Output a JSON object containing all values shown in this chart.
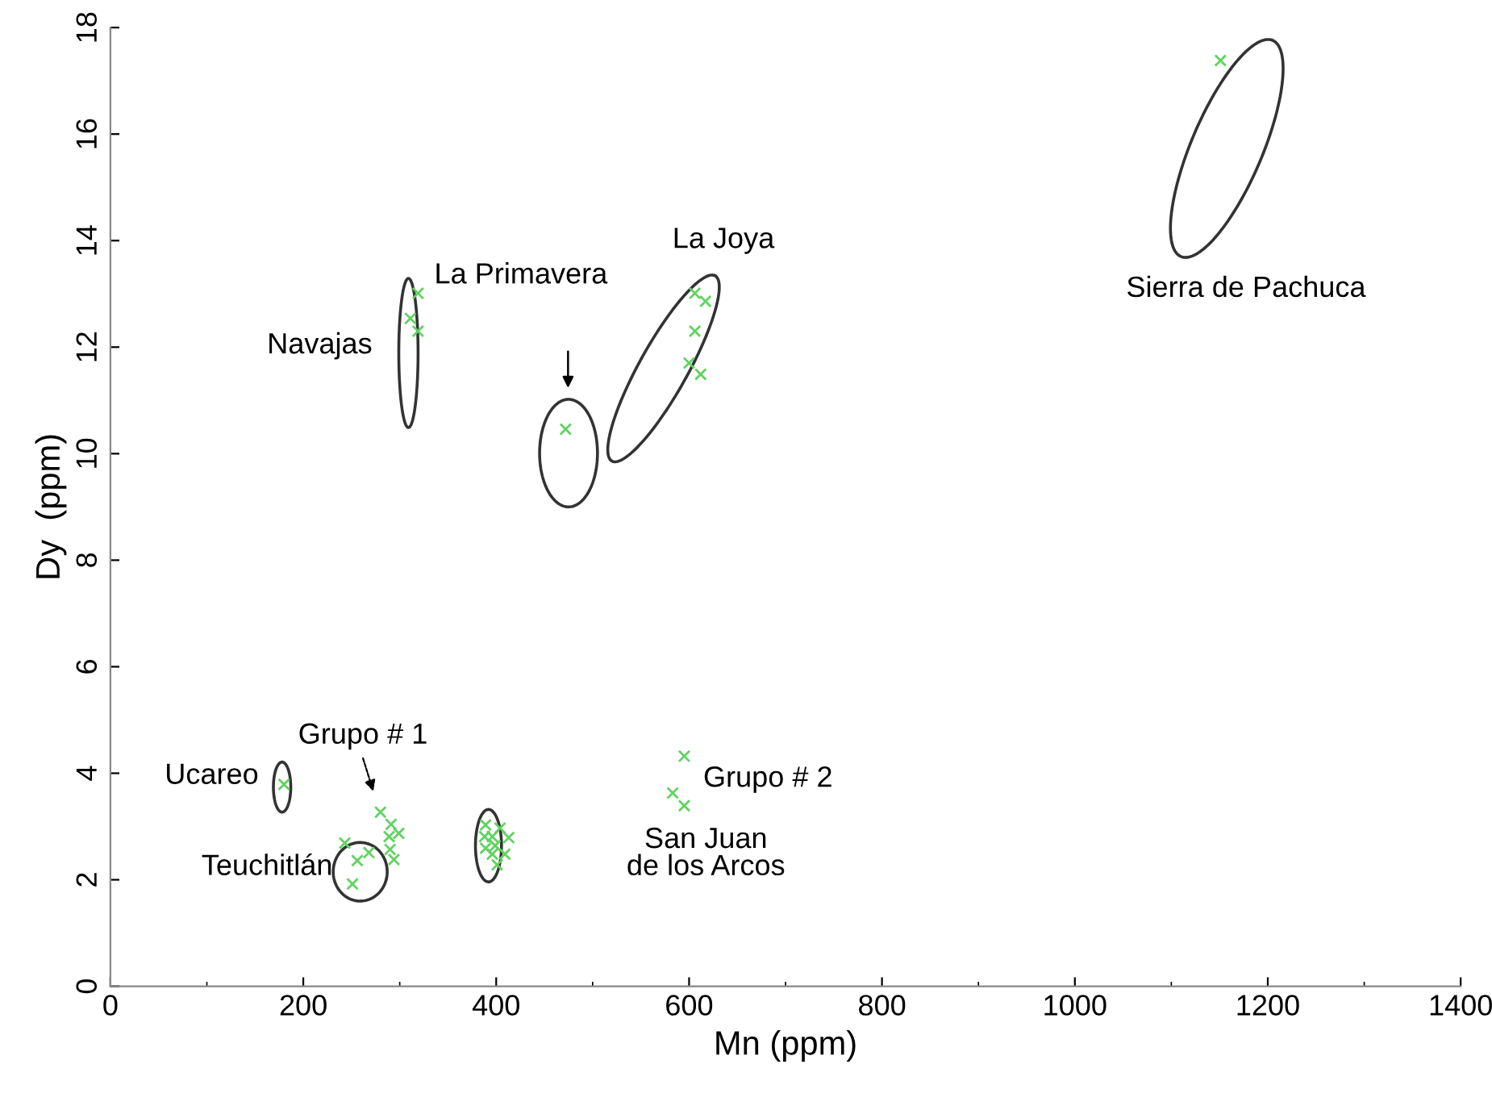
{
  "chart_data": {
    "type": "scatter",
    "xlabel": "Mn (ppm)",
    "ylabel": "Dy  (ppm)",
    "x": [
      180,
      280,
      291,
      299,
      289,
      290,
      294,
      243,
      256,
      268,
      251,
      389,
      388,
      396,
      404,
      413,
      389,
      399,
      396,
      409,
      401,
      595,
      583,
      595,
      319,
      311,
      319,
      472,
      606,
      617,
      606,
      600,
      612,
      1151
    ],
    "series": [
      {
        "color": "#5fd35f",
        "values": [
          3.79,
          3.27,
          3.04,
          2.87,
          2.81,
          2.57,
          2.38,
          2.69,
          2.36,
          2.51,
          1.92,
          3.03,
          2.81,
          2.81,
          2.97,
          2.79,
          2.59,
          2.64,
          2.48,
          2.48,
          2.28,
          4.32,
          3.63,
          3.39,
          13.01,
          12.54,
          12.3,
          10.46,
          13.01,
          12.86,
          12.3,
          11.7,
          11.49,
          17.38
        ]
      }
    ],
    "marker": "cross",
    "xlim": [
      0,
      1400
    ],
    "ylim": [
      0,
      18
    ],
    "xticks": [
      0,
      200,
      400,
      600,
      800,
      1000,
      1200,
      1400
    ],
    "yticks": [
      0,
      2,
      4,
      6,
      8,
      10,
      12,
      14,
      16,
      18
    ],
    "grid": false,
    "legend": false,
    "annotations": [
      "La Joya",
      "Navajas",
      "La Primavera",
      "Sierra de Pachuca",
      "Ucareo",
      "Grupo # 1",
      "Teuchitlán",
      "San Juan\nde los Arcos",
      "Grupo # 2"
    ]
  }
}
